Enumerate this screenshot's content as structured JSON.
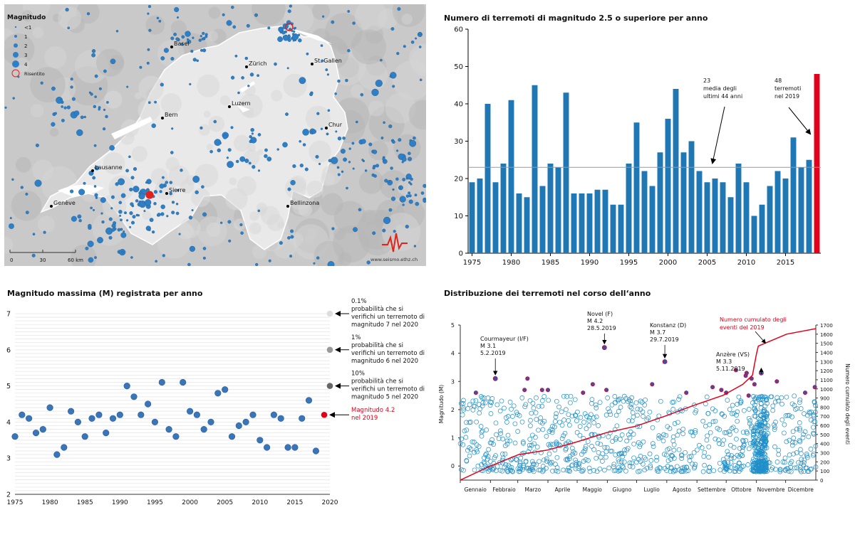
{
  "map": {
    "legend_title": "Magnitudo",
    "legend_items": [
      "<1",
      "1",
      "2",
      "3",
      "4"
    ],
    "felt_label": "Risentito",
    "cities": [
      {
        "name": "Basel"
      },
      {
        "name": "Zürich"
      },
      {
        "name": "St. Gallen"
      },
      {
        "name": "Luzern"
      },
      {
        "name": "Bern"
      },
      {
        "name": "Chur"
      },
      {
        "name": "Lausanne"
      },
      {
        "name": "Genève"
      },
      {
        "name": "Sierre"
      },
      {
        "name": "Bellinzona"
      }
    ],
    "scale_labels": [
      "0",
      "30",
      "60 km"
    ],
    "credit": "www.seismo.ethz.ch",
    "colors": {
      "event": "#2f7fc6",
      "felt": "#e2231a",
      "land": "#e9e9e9",
      "relief": "#a9a9a9"
    }
  },
  "chart_data": [
    {
      "type": "bar",
      "title": "Numero di terremoti di magnitudo 2.5 o superiore per anno",
      "x": [
        1975,
        1976,
        1977,
        1978,
        1979,
        1980,
        1981,
        1982,
        1983,
        1984,
        1985,
        1986,
        1987,
        1988,
        1989,
        1990,
        1991,
        1992,
        1993,
        1994,
        1995,
        1996,
        1997,
        1998,
        1999,
        2000,
        2001,
        2002,
        2003,
        2004,
        2005,
        2006,
        2007,
        2008,
        2009,
        2010,
        2011,
        2012,
        2013,
        2014,
        2015,
        2016,
        2017,
        2018,
        2019
      ],
      "values": [
        19,
        20,
        40,
        19,
        24,
        41,
        16,
        15,
        45,
        18,
        24,
        23,
        43,
        16,
        16,
        16,
        17,
        17,
        13,
        13,
        24,
        35,
        22,
        18,
        27,
        36,
        44,
        27,
        30,
        22,
        19,
        20,
        19,
        15,
        24,
        19,
        10,
        13,
        18,
        22,
        20,
        31,
        23,
        25,
        48
      ],
      "highlight_year": 2019,
      "ylim": [
        0,
        60
      ],
      "yticks": [
        0,
        10,
        20,
        30,
        40,
        50,
        60
      ],
      "xticks": [
        "1975",
        "1980",
        "1985",
        "1990",
        "1995",
        "2000",
        "2005",
        "2010",
        "2015"
      ],
      "mean_line": 23,
      "annotations": {
        "mean": [
          "23",
          "media degli",
          "ultimi 44 anni"
        ],
        "current": [
          "48",
          "terremoti",
          "nel 2019"
        ]
      },
      "colors": {
        "bar": "#1f77b4",
        "highlight": "#e2001a",
        "mean_line": "#999999"
      }
    },
    {
      "type": "scatter",
      "title": "Magnitudo massima (M) registrata per anno",
      "x": [
        1975,
        1976,
        1977,
        1978,
        1979,
        1980,
        1981,
        1982,
        1983,
        1984,
        1985,
        1986,
        1987,
        1988,
        1989,
        1990,
        1991,
        1992,
        1993,
        1994,
        1995,
        1996,
        1997,
        1998,
        1999,
        2000,
        2001,
        2002,
        2003,
        2004,
        2005,
        2006,
        2007,
        2008,
        2009,
        2010,
        2011,
        2012,
        2013,
        2014,
        2015,
        2016,
        2017,
        2018,
        2019
      ],
      "values": [
        3.6,
        4.2,
        4.1,
        3.7,
        3.8,
        4.4,
        3.1,
        3.3,
        4.3,
        4.0,
        3.6,
        4.1,
        4.2,
        3.7,
        4.1,
        4.2,
        5.0,
        4.7,
        4.2,
        4.5,
        4.0,
        5.1,
        3.8,
        3.6,
        5.1,
        4.3,
        4.2,
        3.8,
        4.0,
        4.8,
        4.9,
        3.6,
        3.9,
        4.0,
        4.2,
        3.5,
        3.3,
        4.2,
        4.1,
        3.3,
        3.3,
        4.1,
        4.6,
        3.2,
        4.2
      ],
      "ylim": [
        2,
        7
      ],
      "yticks": [
        "2",
        "3",
        "4",
        "5",
        "6",
        "7"
      ],
      "xlim": [
        1975,
        2020
      ],
      "xticks": [
        "1975",
        "1980",
        "1985",
        "1990",
        "1995",
        "2000",
        "2005",
        "2010",
        "2015",
        "2020"
      ],
      "probabilities": [
        {
          "magnitude": 7,
          "lines": [
            "0.1%",
            "probabilità che si",
            "verifichi un terremoto di",
            "magnitudo 7 nel 2020"
          ],
          "color": "#dddddd"
        },
        {
          "magnitude": 6,
          "lines": [
            "1%",
            "probabilità che si",
            "verifichi un terremoto di",
            "magnitudo 6 nel 2020"
          ],
          "color": "#999999"
        },
        {
          "magnitude": 5,
          "lines": [
            "10%",
            "probabilità che si",
            "verifichi un terremoto di",
            "magnitudo 5 nel 2020"
          ],
          "color": "#666666"
        }
      ],
      "current": {
        "year": 2019,
        "magnitude": 4.2,
        "lines": [
          "Magnitudo 4.2",
          "nel 2019"
        ],
        "color": "#e2001a"
      },
      "colors": {
        "point": "#3a75b8"
      }
    },
    {
      "type": "scatter",
      "title": "Distribuzione dei terremoti nel corso dell‘anno",
      "ylabel": "Magnitudo (M)",
      "y2label": "Numero cumulato degli eventi",
      "ylim": [
        -0.5,
        5
      ],
      "yticks": [
        "0",
        "1",
        "2",
        "3",
        "4",
        "5"
      ],
      "y2lim": [
        0,
        1700
      ],
      "y2ticks": [
        "0",
        "100",
        "200",
        "300",
        "400",
        "500",
        "600",
        "700",
        "800",
        "900",
        "1000",
        "1100",
        "1200",
        "1300",
        "1400",
        "1500",
        "1600",
        "1700"
      ],
      "months": [
        "Gennaio",
        "Febbraio",
        "Marzo",
        "Aprile",
        "Maggio",
        "Giugno",
        "Luglio",
        "Agosto",
        "Settembre",
        "Ottobre",
        "Novembre",
        "Dicembre"
      ],
      "cumulative_label": [
        "Numero cumulato degli",
        "eventi del 2019"
      ],
      "cumulative_total": 1660,
      "cumulative_curve": [
        [
          0,
          0
        ],
        [
          30,
          150
        ],
        [
          60,
          280
        ],
        [
          90,
          330
        ],
        [
          120,
          420
        ],
        [
          150,
          520
        ],
        [
          180,
          590
        ],
        [
          210,
          700
        ],
        [
          240,
          820
        ],
        [
          270,
          930
        ],
        [
          290,
          1050
        ],
        [
          300,
          1150
        ],
        [
          304,
          1380
        ],
        [
          306,
          1470
        ],
        [
          335,
          1600
        ],
        [
          365,
          1660
        ]
      ],
      "labeled_events": [
        {
          "lines": [
            "Courmayeur (I/F)",
            "M 3.1",
            "5.2.2019"
          ],
          "day": 36,
          "magnitude": 3.1
        },
        {
          "lines": [
            "Novel (F)",
            "M 4.2",
            "28.5.2019"
          ],
          "day": 148,
          "magnitude": 4.2
        },
        {
          "lines": [
            "Konstanz (D)",
            "M 3.7",
            "29.7.2019"
          ],
          "day": 210,
          "magnitude": 3.7
        },
        {
          "lines": [
            "Anzère (VS)",
            "M 3.3",
            "5.11.2019"
          ],
          "day": 309,
          "magnitude": 3.3
        }
      ],
      "colors": {
        "event": "#1f8fc8",
        "felt_fill": "#3a4fb0",
        "felt_ring": "#e2001a",
        "cumulative": "#e2001a"
      }
    }
  ]
}
